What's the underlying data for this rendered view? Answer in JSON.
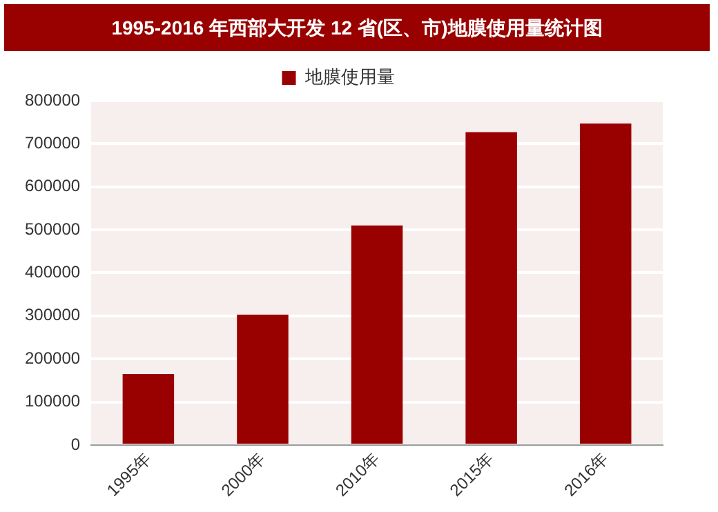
{
  "chart_data": {
    "type": "bar",
    "title": "1995-2016 年西部大开发 12 省(区、市)地膜使用量统计图",
    "categories": [
      "1995年",
      "2000年",
      "2010年",
      "2015年",
      "2016年"
    ],
    "series": [
      {
        "name": "地膜使用量",
        "color": "#990000",
        "values": [
          165000,
          303000,
          510000,
          727000,
          747000
        ]
      }
    ],
    "ylim": [
      0,
      800000
    ],
    "yticks": [
      0,
      100000,
      200000,
      300000,
      400000,
      500000,
      600000,
      700000,
      800000
    ],
    "grid": "y",
    "legend": "top"
  }
}
